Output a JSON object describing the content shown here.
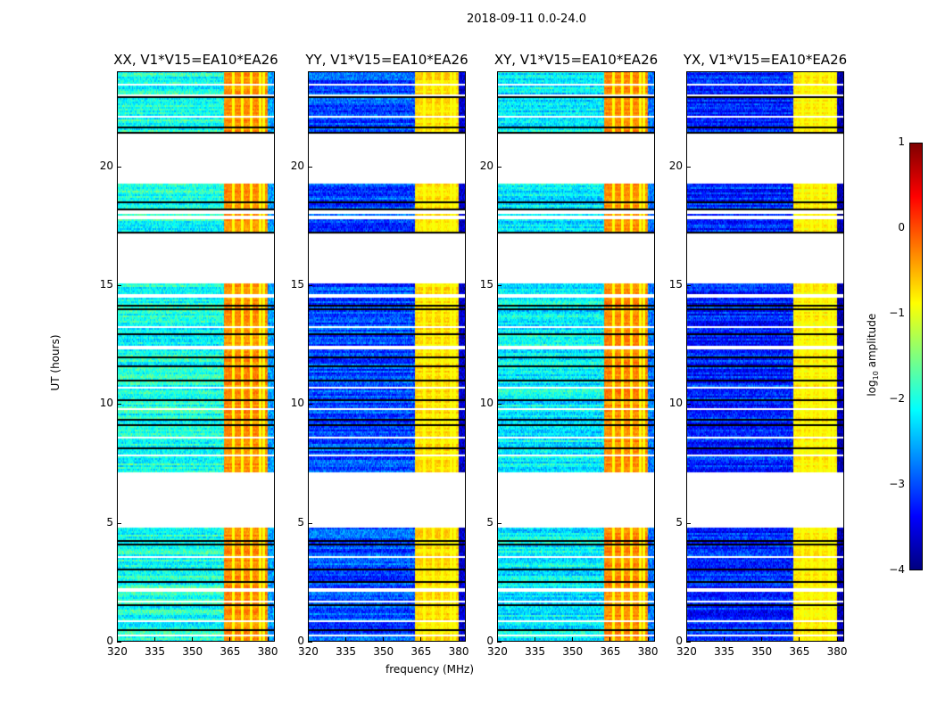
{
  "suptitle": "2018-09-11 0.0-24.0",
  "chart_data": [
    {
      "type": "heatmap",
      "title": "XX, V1*V15=EA10*EA26",
      "base_level": -2.0,
      "rfi_level": -0.3
    },
    {
      "type": "heatmap",
      "title": "YY, V1*V15=EA10*EA26",
      "base_level": -3.0,
      "rfi_level": -0.7
    },
    {
      "type": "heatmap",
      "title": "XY, V1*V15=EA10*EA26",
      "base_level": -2.2,
      "rfi_level": -0.3
    },
    {
      "type": "heatmap",
      "title": "YX, V1*V15=EA10*EA26",
      "base_level": -3.2,
      "rfi_level": -0.8
    }
  ],
  "axes": {
    "xlabel": "frequency (MHz)",
    "ylabel": "UT (hours)",
    "xlim": [
      320,
      383
    ],
    "ylim": [
      0,
      24
    ],
    "xticks": [
      "320",
      "335",
      "350",
      "365",
      "380"
    ],
    "xtick_values": [
      320,
      335,
      350,
      365,
      380
    ],
    "yticks": [
      "0",
      "5",
      "10",
      "15",
      "20"
    ],
    "ytick_values": [
      0,
      5,
      10,
      15,
      20
    ],
    "data_time_ranges": [
      [
        0,
        4.8
      ],
      [
        7.2,
        15.1
      ],
      [
        17.2,
        19.3
      ],
      [
        21.4,
        24
      ]
    ],
    "rfi_band_mhz": [
      362.5,
      380
    ]
  },
  "colorbar": {
    "label_main": "log",
    "label_sub": "10",
    "label_rest": " amplitude",
    "ticks": [
      "1",
      "0",
      "−1",
      "−2",
      "−3",
      "−4"
    ],
    "tick_values": [
      1,
      0,
      -1,
      -2,
      -3,
      -4
    ],
    "range": [
      -4,
      1
    ],
    "colormap": "jet"
  }
}
